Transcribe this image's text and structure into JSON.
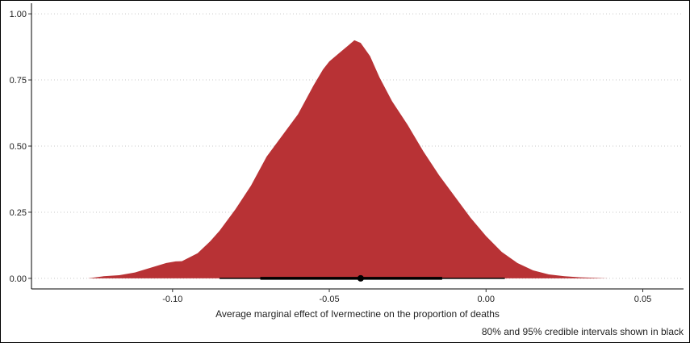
{
  "chart_data": {
    "type": "area",
    "title": "",
    "xlabel": "Average marginal effect of Ivermectine on the proportion of deaths",
    "ylabel": "",
    "caption": "80% and 95% credible intervals shown in black",
    "xlim": [
      -0.145,
      0.063
    ],
    "ylim": [
      -0.04,
      1.04
    ],
    "x_ticks": [
      -0.1,
      -0.05,
      0.0,
      0.05
    ],
    "x_tick_labels": [
      "-0.10",
      "-0.05",
      "0.00",
      "0.05"
    ],
    "y_ticks": [
      0.0,
      0.25,
      0.5,
      0.75,
      1.0
    ],
    "y_tick_labels": [
      "0.00",
      "0.25",
      "0.50",
      "0.75",
      "1.00"
    ],
    "grid": {
      "horizontal": true,
      "style": "dotted",
      "vertical": false
    },
    "fill_color": "#b83235",
    "interval_color": "#000000",
    "density": {
      "x": [
        -0.127,
        -0.122,
        -0.117,
        -0.112,
        -0.107,
        -0.102,
        -0.099,
        -0.097,
        -0.092,
        -0.088,
        -0.085,
        -0.08,
        -0.075,
        -0.07,
        -0.065,
        -0.06,
        -0.055,
        -0.052,
        -0.05,
        -0.047,
        -0.044,
        -0.042,
        -0.04,
        -0.037,
        -0.034,
        -0.03,
        -0.025,
        -0.02,
        -0.015,
        -0.01,
        -0.005,
        0.0,
        0.005,
        0.01,
        0.015,
        0.02,
        0.025,
        0.03,
        0.035,
        0.039
      ],
      "y": [
        0.0,
        0.008,
        0.012,
        0.022,
        0.04,
        0.058,
        0.064,
        0.065,
        0.095,
        0.14,
        0.18,
        0.26,
        0.35,
        0.46,
        0.54,
        0.62,
        0.73,
        0.79,
        0.82,
        0.85,
        0.88,
        0.9,
        0.89,
        0.84,
        0.76,
        0.67,
        0.58,
        0.48,
        0.39,
        0.31,
        0.23,
        0.16,
        0.1,
        0.058,
        0.03,
        0.015,
        0.008,
        0.004,
        0.002,
        0.0
      ]
    },
    "point_estimate": -0.04,
    "interval_80": [
      -0.072,
      -0.014
    ],
    "interval_95": [
      -0.085,
      0.006
    ]
  }
}
